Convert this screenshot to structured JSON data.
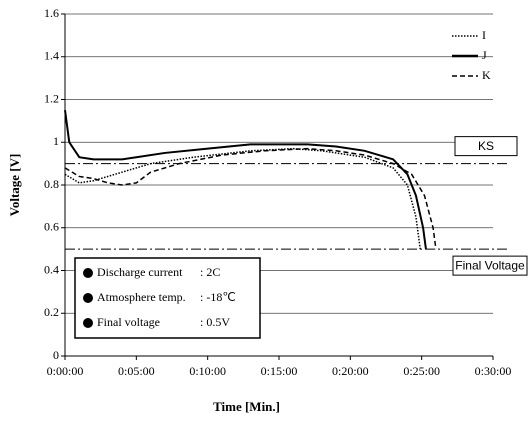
{
  "chart_data": {
    "type": "line",
    "ylabel": "Voltage [V]",
    "xlabel": "Time [Min.]",
    "xlim": [
      0,
      30
    ],
    "xticks": [
      {
        "value": 0,
        "label": "0:00:00"
      },
      {
        "value": 5,
        "label": "0:05:00"
      },
      {
        "value": 10,
        "label": "0:10:00"
      },
      {
        "value": 15,
        "label": "0:15:00"
      },
      {
        "value": 20,
        "label": "0:20:00"
      },
      {
        "value": 25,
        "label": "0:25:00"
      },
      {
        "value": 30,
        "label": "0:30:00"
      }
    ],
    "ylim": [
      0,
      1.6
    ],
    "yticks": [
      0,
      0.2,
      0.4,
      0.6,
      0.8,
      1,
      1.2,
      1.4,
      1.6
    ],
    "grid": true,
    "legend": "top-right",
    "series": [
      {
        "name": "I",
        "color": "#000000",
        "style": "dotted",
        "x": [
          0,
          1,
          2,
          4,
          6,
          9,
          13,
          16,
          18,
          21,
          23,
          24,
          24.6,
          24.9
        ],
        "values": [
          0.85,
          0.81,
          0.82,
          0.86,
          0.9,
          0.93,
          0.96,
          0.97,
          0.96,
          0.93,
          0.88,
          0.8,
          0.65,
          0.5
        ]
      },
      {
        "name": "J",
        "color": "#000000",
        "style": "solid",
        "x": [
          0,
          0.3,
          1,
          2,
          4,
          5,
          7,
          10,
          13,
          17,
          19,
          21,
          23,
          24,
          24.6,
          25.1,
          25.3
        ],
        "values": [
          1.15,
          1.0,
          0.93,
          0.92,
          0.92,
          0.93,
          0.95,
          0.97,
          0.99,
          0.99,
          0.98,
          0.96,
          0.92,
          0.85,
          0.75,
          0.6,
          0.5
        ]
      },
      {
        "name": "K",
        "color": "#000000",
        "style": "dashed",
        "x": [
          0,
          1,
          2,
          3,
          4,
          5,
          6,
          8,
          11,
          14,
          17,
          19,
          21,
          23,
          24.3,
          25.2,
          25.8,
          26
        ],
        "values": [
          0.88,
          0.84,
          0.83,
          0.81,
          0.8,
          0.81,
          0.86,
          0.9,
          0.94,
          0.96,
          0.97,
          0.96,
          0.94,
          0.9,
          0.85,
          0.75,
          0.6,
          0.5
        ]
      }
    ],
    "reference_lines": [
      {
        "label": "KS",
        "value": 0.9
      },
      {
        "label": "Final Voltage",
        "value": 0.5
      }
    ],
    "conditions": [
      {
        "label": "Discharge current",
        "value": ": 2C"
      },
      {
        "label": "Atmosphere temp.",
        "value": ": -18℃"
      },
      {
        "label": "Final voltage",
        "value": ": 0.5V"
      }
    ]
  }
}
